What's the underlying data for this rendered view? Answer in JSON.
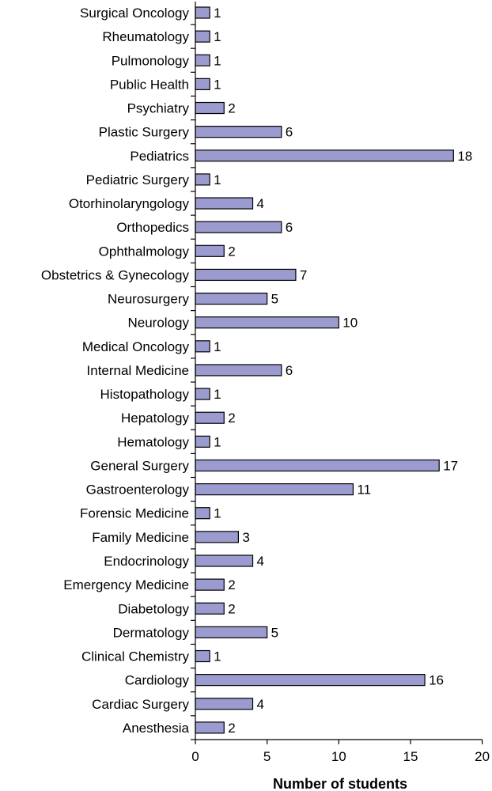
{
  "chart_data": {
    "type": "bar",
    "orientation": "horizontal",
    "categories": [
      "Surgical Oncology",
      "Rheumatology",
      "Pulmonology",
      "Public Health",
      "Psychiatry",
      "Plastic Surgery",
      "Pediatrics",
      "Pediatric Surgery",
      "Otorhinolaryngology",
      "Orthopedics",
      "Ophthalmology",
      "Obstetrics & Gynecology",
      "Neurosurgery",
      "Neurology",
      "Medical Oncology",
      "Internal Medicine",
      "Histopathology",
      "Hepatology",
      "Hematology",
      "General Surgery",
      "Gastroenterology",
      "Forensic Medicine",
      "Family Medicine",
      "Endocrinology",
      "Emergency Medicine",
      "Diabetology",
      "Dermatology",
      "Clinical Chemistry",
      "Cardiology",
      "Cardiac Surgery",
      "Anesthesia"
    ],
    "values": [
      1,
      1,
      1,
      1,
      2,
      6,
      18,
      1,
      4,
      6,
      2,
      7,
      5,
      10,
      1,
      6,
      1,
      2,
      1,
      17,
      11,
      1,
      3,
      4,
      2,
      2,
      5,
      1,
      16,
      4,
      2
    ],
    "xlabel": "Number of students",
    "xlim": [
      0,
      20
    ],
    "xticks": [
      "0",
      "5",
      "10",
      "15",
      "20"
    ],
    "grid": false,
    "bar_color": "#9b9bcf",
    "bar_edge_color": "#000000"
  }
}
